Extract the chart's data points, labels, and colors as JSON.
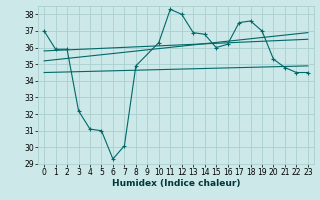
{
  "xlabel": "Humidex (Indice chaleur)",
  "ylabel": "",
  "bg_color": "#cce8e8",
  "grid_color": "#aad0d0",
  "line_color": "#006868",
  "xlim": [
    -0.5,
    23.5
  ],
  "ylim": [
    29,
    38.5
  ],
  "yticks": [
    29,
    30,
    31,
    32,
    33,
    34,
    35,
    36,
    37,
    38
  ],
  "xticks": [
    0,
    1,
    2,
    3,
    4,
    5,
    6,
    7,
    8,
    9,
    10,
    11,
    12,
    13,
    14,
    15,
    16,
    17,
    18,
    19,
    20,
    21,
    22,
    23
  ],
  "line1_x": [
    0,
    1,
    2,
    3,
    4,
    5,
    6,
    7,
    8,
    10,
    11,
    12,
    13,
    14,
    15,
    16,
    17,
    18,
    19,
    20,
    21,
    22,
    23
  ],
  "line1_y": [
    37.0,
    35.9,
    35.9,
    32.2,
    31.1,
    31.0,
    29.3,
    30.1,
    34.9,
    36.3,
    38.3,
    38.0,
    36.9,
    36.8,
    36.0,
    36.2,
    37.5,
    37.6,
    37.0,
    35.3,
    34.8,
    34.5,
    34.5
  ],
  "line2_x": [
    0,
    23
  ],
  "line2_y": [
    35.2,
    36.9
  ],
  "line3_x": [
    0,
    23
  ],
  "line3_y": [
    34.5,
    34.9
  ],
  "line4_x": [
    0,
    23
  ],
  "line4_y": [
    35.8,
    36.5
  ]
}
